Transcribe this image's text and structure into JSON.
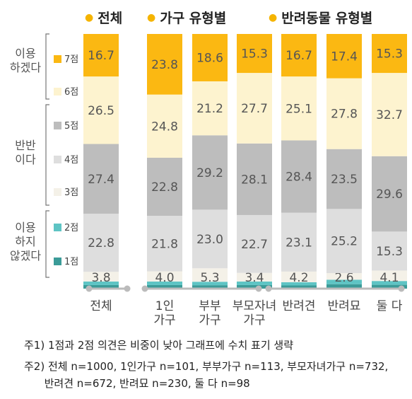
{
  "headers": [
    "전체",
    "가구 유형별",
    "반려동물 유형별"
  ],
  "header_dot_color": "#f5b400",
  "groups": [
    {
      "label": "이용\n하겠다"
    },
    {
      "label": "반반\n이다"
    },
    {
      "label": "이용\n하지\n않겠다"
    }
  ],
  "legend": [
    {
      "label": "7점",
      "color": "#fbb812"
    },
    {
      "label": "6점",
      "color": "#fdf3cf"
    },
    {
      "label": "5점",
      "color": "#bdbdbd"
    },
    {
      "label": "4점",
      "color": "#dedede"
    },
    {
      "label": "3점",
      "color": "#f4f1e8"
    },
    {
      "label": "2점",
      "color": "#5ec4c4"
    },
    {
      "label": "1점",
      "color": "#3b9b98"
    }
  ],
  "chart_data": {
    "type": "bar",
    "stacked": true,
    "orientation": "vertical",
    "unit": "%",
    "categories": [
      "전체",
      "1인\n가구",
      "부부\n가구",
      "부모자녀\n가구",
      "반려견",
      "반려묘",
      "둘 다"
    ],
    "series": [
      {
        "name": "1점",
        "values": [
          null,
          null,
          null,
          null,
          null,
          null,
          null
        ]
      },
      {
        "name": "2점",
        "values": [
          null,
          null,
          null,
          null,
          null,
          null,
          null
        ]
      },
      {
        "name": "3점",
        "values": [
          3.8,
          4.0,
          5.3,
          3.4,
          4.2,
          2.6,
          4.1
        ]
      },
      {
        "name": "4점",
        "values": [
          22.8,
          21.8,
          23.0,
          22.7,
          23.1,
          25.2,
          15.3
        ]
      },
      {
        "name": "5점",
        "values": [
          27.4,
          22.8,
          29.2,
          28.1,
          28.4,
          23.5,
          29.6
        ]
      },
      {
        "name": "6점",
        "values": [
          26.5,
          24.8,
          21.2,
          27.7,
          25.1,
          27.8,
          32.7
        ]
      },
      {
        "name": "7점",
        "values": [
          16.7,
          23.8,
          18.6,
          15.3,
          16.7,
          17.4,
          15.3
        ]
      }
    ],
    "ylim": [
      0,
      100
    ]
  },
  "notes": [
    "주1) 1점과 2점 의견은 비중이 낮아 그래프에 수치 표기 생략",
    "주2) 전체 n=1000, 1인가구 n=101, 부부가구 n=113, 부모자녀가구 n=732,",
    "      반려견 n=672, 반려묘 n=230, 둘 다 n=98"
  ]
}
